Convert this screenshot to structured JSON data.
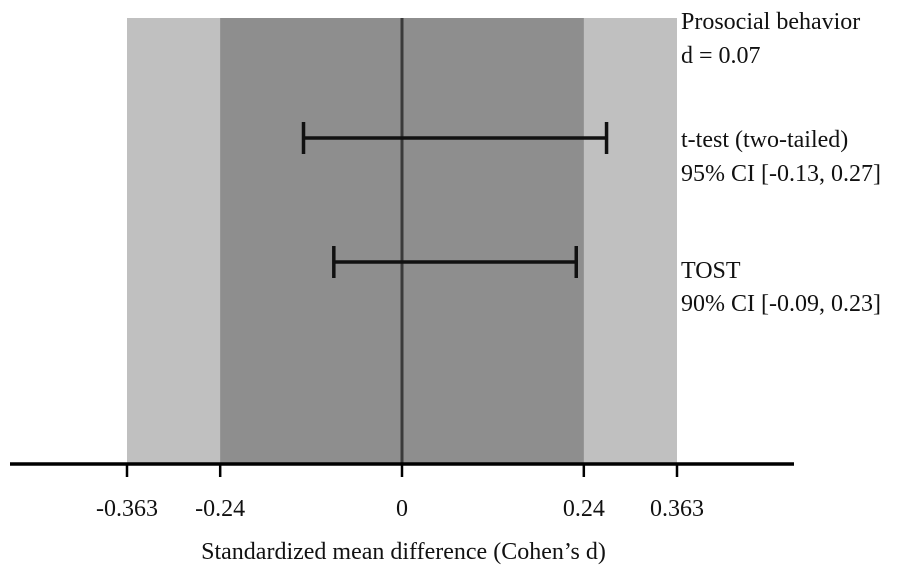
{
  "chart_data": {
    "type": "interval",
    "xlabel": "Standardized mean difference (Cohen’s d)",
    "ticks": [
      {
        "value": -0.363,
        "label": "-0.363"
      },
      {
        "value": -0.24,
        "label": "-0.24"
      },
      {
        "value": 0,
        "label": "0"
      },
      {
        "value": 0.24,
        "label": "0.24"
      },
      {
        "value": 0.363,
        "label": "0.363"
      }
    ],
    "bands": [
      {
        "from": -0.363,
        "to": 0.363,
        "color": "#c0c0c0"
      },
      {
        "from": -0.24,
        "to": 0.24,
        "color": "#8e8e8e"
      }
    ],
    "reference_line": 0,
    "effect": {
      "name": "Prosocial behavior",
      "label": "d = 0.07",
      "d": 0.07
    },
    "intervals": [
      {
        "name": "t-test (two-tailed)",
        "ci_label": "95% CI [-0.13, 0.27]",
        "low": -0.13,
        "high": 0.27
      },
      {
        "name": "TOST",
        "ci_label": "90% CI [-0.09, 0.23]",
        "low": -0.09,
        "high": 0.23
      }
    ],
    "colors": {
      "outer_band": "#c0c0c0",
      "inner_band": "#8e8e8e",
      "axis": "#000000",
      "zero_line": "#3a3a3a",
      "ci": "#111111"
    }
  }
}
